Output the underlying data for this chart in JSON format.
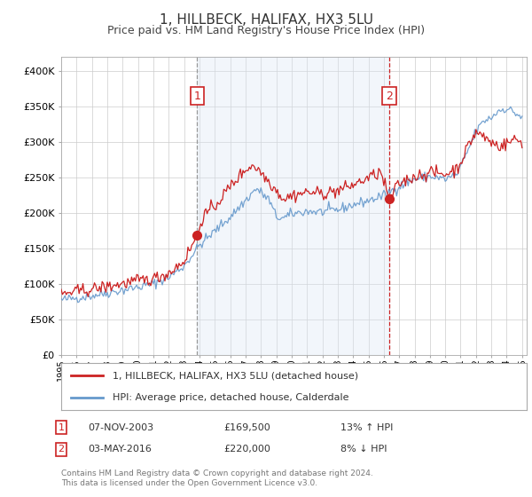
{
  "title": "1, HILLBECK, HALIFAX, HX3 5LU",
  "subtitle": "Price paid vs. HM Land Registry's House Price Index (HPI)",
  "title_fontsize": 11,
  "subtitle_fontsize": 9,
  "background_color": "#ffffff",
  "plot_bg_color": "#ffffff",
  "grid_color": "#cccccc",
  "shade_color": "#dce8f5",
  "xlim": [
    1995.0,
    2025.3
  ],
  "ylim": [
    0,
    420000
  ],
  "yticks": [
    0,
    50000,
    100000,
    150000,
    200000,
    250000,
    300000,
    350000,
    400000
  ],
  "ytick_labels": [
    "£0",
    "£50K",
    "£100K",
    "£150K",
    "£200K",
    "£250K",
    "£300K",
    "£350K",
    "£400K"
  ],
  "red_line_color": "#cc2222",
  "blue_line_color": "#6699cc",
  "marker_color": "#cc2222",
  "vline1_color": "#999999",
  "vline2_color": "#cc2222",
  "sale1_x": 2003.85,
  "sale1_y": 169500,
  "sale2_x": 2016.35,
  "sale2_y": 220000,
  "legend_label_red": "1, HILLBECK, HALIFAX, HX3 5LU (detached house)",
  "legend_label_blue": "HPI: Average price, detached house, Calderdale",
  "table_rows": [
    {
      "num": "1",
      "date": "07-NOV-2003",
      "price": "£169,500",
      "hpi": "13% ↑ HPI"
    },
    {
      "num": "2",
      "date": "03-MAY-2016",
      "price": "£220,000",
      "hpi": "8% ↓ HPI"
    }
  ],
  "footnote": "Contains HM Land Registry data © Crown copyright and database right 2024.\nThis data is licensed under the Open Government Licence v3.0."
}
